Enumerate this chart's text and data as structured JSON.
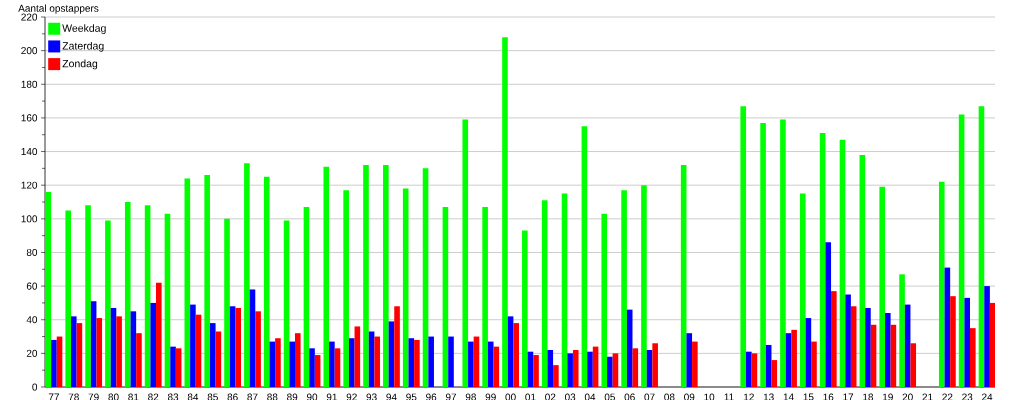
{
  "chart_data": {
    "type": "bar",
    "ylabel": "Aantal opstappers",
    "categories": [
      "77",
      "78",
      "79",
      "80",
      "81",
      "82",
      "83",
      "84",
      "85",
      "86",
      "87",
      "88",
      "89",
      "90",
      "91",
      "92",
      "93",
      "94",
      "95",
      "96",
      "97",
      "98",
      "99",
      "00",
      "01",
      "02",
      "03",
      "04",
      "05",
      "06",
      "07",
      "08",
      "09",
      "10",
      "11",
      "12",
      "13",
      "14",
      "15",
      "16",
      "17",
      "18",
      "19",
      "20",
      "21",
      "22",
      "23",
      "24"
    ],
    "series": [
      {
        "name": "Weekdag",
        "color": "#00ff00",
        "values": [
          116,
          105,
          108,
          99,
          110,
          108,
          103,
          124,
          126,
          100,
          133,
          125,
          99,
          107,
          131,
          117,
          132,
          132,
          118,
          130,
          107,
          159,
          107,
          208,
          93,
          111,
          115,
          155,
          103,
          117,
          120,
          null,
          132,
          null,
          null,
          167,
          157,
          159,
          115,
          151,
          147,
          138,
          119,
          67,
          null,
          122,
          162,
          167
        ]
      },
      {
        "name": "Zaterdag",
        "color": "#0000ff",
        "values": [
          28,
          42,
          51,
          47,
          45,
          50,
          24,
          49,
          38,
          48,
          58,
          27,
          27,
          23,
          27,
          29,
          33,
          39,
          29,
          30,
          30,
          27,
          27,
          42,
          21,
          22,
          20,
          21,
          18,
          46,
          22,
          null,
          32,
          null,
          null,
          21,
          25,
          32,
          41,
          86,
          55,
          47,
          44,
          49,
          null,
          71,
          53,
          60
        ]
      },
      {
        "name": "Zondag",
        "color": "#ff0000",
        "values": [
          30,
          38,
          41,
          42,
          32,
          62,
          23,
          43,
          33,
          47,
          45,
          29,
          32,
          19,
          23,
          36,
          30,
          48,
          28,
          null,
          null,
          30,
          24,
          38,
          19,
          13,
          22,
          24,
          20,
          23,
          26,
          null,
          27,
          null,
          null,
          20,
          16,
          34,
          27,
          57,
          48,
          37,
          37,
          26,
          null,
          54,
          35,
          50
        ]
      }
    ],
    "ylim": [
      0,
      220
    ],
    "yticks": [
      0,
      20,
      40,
      60,
      80,
      100,
      120,
      140,
      160,
      180,
      200,
      220
    ],
    "grid": "y",
    "legend": "top left"
  }
}
